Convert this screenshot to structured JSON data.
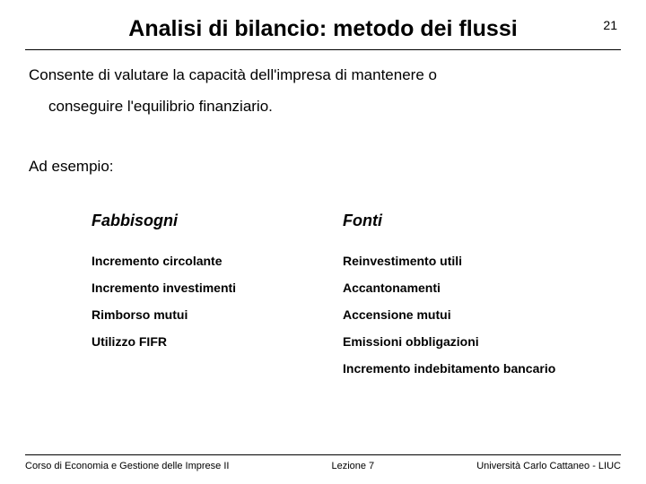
{
  "header": {
    "title": "Analisi di bilancio: metodo dei flussi",
    "page_number": "21"
  },
  "intro": {
    "line1": "Consente di valutare la capacità dell'impresa di mantenere o",
    "line2": "conseguire l'equilibrio finanziario."
  },
  "example_label": "Ad esempio:",
  "columns": {
    "left": {
      "header": "Fabbisogni",
      "items": [
        "Incremento circolante",
        "Incremento investimenti",
        "Rimborso mutui",
        "Utilizzo FIFR"
      ]
    },
    "right": {
      "header": "Fonti",
      "items": [
        "Reinvestimento utili",
        "Accantonamenti",
        "Accensione mutui",
        "Emissioni obbligazioni",
        "Incremento indebitamento bancario"
      ]
    }
  },
  "footer": {
    "left": "Corso di Economia e Gestione delle Imprese II",
    "center": "Lezione 7",
    "right": "Università Carlo Cattaneo - LIUC"
  },
  "style": {
    "background_color": "#ffffff",
    "text_color": "#000000",
    "title_fontsize": 25,
    "body_fontsize": 17,
    "col_header_fontsize": 18,
    "col_item_fontsize": 14,
    "footer_fontsize": 11
  }
}
